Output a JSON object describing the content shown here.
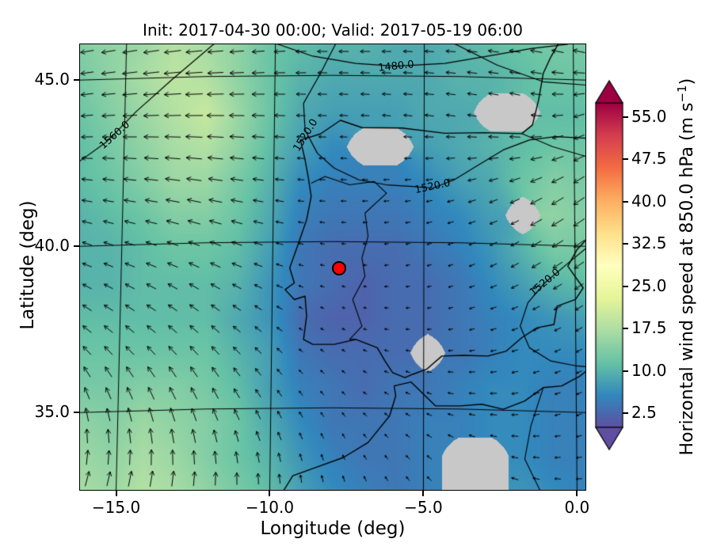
{
  "figure": {
    "title": "Init: 2017-04-30 00:00; Valid: 2017-05-19 06:00",
    "xlabel": "Longitude (deg)",
    "ylabel": "Latitude (deg)",
    "xticks": [
      -15.0,
      -10.0,
      -5.0,
      0.0
    ],
    "xtick_labels": [
      "−15.0",
      "−10.0",
      "−5.0",
      "0.0"
    ],
    "yticks": [
      35.0,
      40.0,
      45.0
    ],
    "ytick_labels": [
      "35.0",
      "40.0",
      "45.0"
    ]
  },
  "chart_data": {
    "type": "heatmap",
    "title": "Init: 2017-04-30 00:00; Valid: 2017-05-19 06:00",
    "xlabel": "Longitude (deg)",
    "ylabel": "Latitude (deg)",
    "xlim": [
      -16.2,
      0.3
    ],
    "ylim": [
      32.65,
      46.1
    ],
    "grid_on": true,
    "colorbar": {
      "label_prefix": "Horizontal wind speed at 850.0 hPa (m s",
      "label_sup": "−1",
      "label_suffix": ")",
      "tick_values": [
        2.5,
        10.0,
        17.5,
        25.0,
        32.5,
        40.0,
        47.5,
        55.0
      ],
      "tick_labels": [
        "2.5",
        "10.0",
        "17.5",
        "25.0",
        "32.5",
        "40.0",
        "47.5",
        "55.0"
      ],
      "vmin": 0.0,
      "vmax": 57.5,
      "extend": "both",
      "colormap_stops": [
        [
          0.0,
          "#5e4fa2"
        ],
        [
          5.75,
          "#3288bd"
        ],
        [
          11.5,
          "#66c2a5"
        ],
        [
          17.25,
          "#abdda4"
        ],
        [
          23.0,
          "#e6f598"
        ],
        [
          28.75,
          "#ffffbf"
        ],
        [
          34.5,
          "#fee08b"
        ],
        [
          40.25,
          "#fdae61"
        ],
        [
          46.0,
          "#f46d43"
        ],
        [
          51.75,
          "#d53e4f"
        ],
        [
          57.5,
          "#9e0142"
        ]
      ],
      "masked_color": "#c8c8c8"
    },
    "wind_speed_grid": {
      "lon": [
        -16.2,
        -15.17,
        -14.14,
        -13.11,
        -12.08,
        -11.04,
        -10.01,
        -8.98,
        -7.95,
        -6.92,
        -5.88,
        -4.85,
        -3.82,
        -2.79,
        -1.76,
        -0.73,
        0.3
      ],
      "lat": [
        46.1,
        45.07,
        44.03,
        43.0,
        41.96,
        40.93,
        39.89,
        38.86,
        37.82,
        36.79,
        35.75,
        34.72,
        33.68,
        32.65
      ],
      "values": [
        [
          14,
          15,
          16,
          18,
          17,
          15,
          12,
          11,
          10,
          10,
          9,
          9,
          10,
          11,
          12,
          13,
          13
        ],
        [
          13,
          15,
          17,
          19,
          18,
          15,
          12,
          10,
          9,
          9,
          9,
          9,
          10,
          10,
          11,
          12,
          12
        ],
        [
          12,
          14,
          16,
          18,
          20,
          16,
          12,
          9,
          8,
          8,
          8,
          9,
          9,
          null,
          null,
          11,
          11
        ],
        [
          11,
          13,
          15,
          17,
          18,
          15,
          11,
          8,
          6,
          null,
          null,
          8,
          9,
          10,
          11,
          12,
          12
        ],
        [
          11,
          12,
          14,
          16,
          16,
          13,
          10,
          6,
          5,
          5,
          5,
          6,
          8,
          9,
          12,
          14,
          13
        ],
        [
          10,
          11,
          12,
          14,
          14,
          12,
          9,
          5,
          4,
          4,
          4,
          5,
          6,
          8,
          null,
          15,
          14
        ],
        [
          10,
          10,
          11,
          12,
          12,
          11,
          8,
          4,
          3,
          3,
          3,
          4,
          5,
          7,
          10,
          13,
          13
        ],
        [
          10,
          10,
          11,
          11,
          11,
          10,
          7,
          4,
          3,
          2,
          3,
          3,
          4,
          6,
          8,
          10,
          11
        ],
        [
          11,
          11,
          11,
          11,
          11,
          9,
          7,
          3,
          2,
          2,
          3,
          3,
          4,
          5,
          6,
          7,
          8
        ],
        [
          12,
          12,
          12,
          12,
          12,
          10,
          8,
          4,
          3,
          3,
          3,
          null,
          4,
          5,
          6,
          6,
          6
        ],
        [
          13,
          13,
          14,
          14,
          13,
          11,
          8,
          5,
          4,
          3,
          4,
          4,
          5,
          6,
          6,
          5,
          5
        ],
        [
          15,
          14,
          16,
          15,
          14,
          12,
          9,
          6,
          4,
          4,
          4,
          5,
          5,
          6,
          6,
          5,
          5
        ],
        [
          16,
          15,
          17,
          16,
          14,
          12,
          10,
          7,
          5,
          4,
          4,
          5,
          null,
          null,
          6,
          5,
          5
        ],
        [
          17,
          16,
          18,
          17,
          15,
          13,
          11,
          8,
          6,
          5,
          4,
          5,
          null,
          null,
          7,
          6,
          5
        ]
      ]
    },
    "wind_direction_grid": {
      "lon": [
        -16.2,
        -14.14,
        -12.08,
        -10.01,
        -7.95,
        -5.89,
        -3.82,
        -1.76,
        0.3
      ],
      "lat": [
        46.1,
        43.86,
        41.62,
        39.37,
        37.13,
        34.89,
        32.65
      ],
      "angles_deg": [
        [
          190,
          190,
          185,
          185,
          180,
          180,
          175,
          170,
          165
        ],
        [
          185,
          182,
          180,
          178,
          178,
          175,
          172,
          168,
          200
        ],
        [
          172,
          172,
          170,
          172,
          178,
          185,
          195,
          205,
          215
        ],
        [
          158,
          158,
          155,
          160,
          170,
          190,
          200,
          210,
          215
        ],
        [
          138,
          138,
          135,
          140,
          152,
          172,
          190,
          200,
          210
        ],
        [
          100,
          105,
          110,
          118,
          125,
          145,
          165,
          185,
          200
        ],
        [
          70,
          75,
          82,
          90,
          100,
          122,
          142,
          162,
          182
        ]
      ]
    },
    "contours": [
      {
        "points": [
          [
            -9.8,
            46.1
          ],
          [
            -8.6,
            45.72
          ],
          [
            -7.2,
            45.5
          ],
          [
            -5.9,
            45.42
          ],
          [
            -4.3,
            45.5
          ],
          [
            -2.9,
            45.72
          ],
          [
            -1.5,
            45.95
          ],
          [
            -0.3,
            46.08
          ]
        ],
        "labels": [
          {
            "text": "1480.0",
            "pos": [
              -5.9,
              45.42
            ],
            "angle_deg": -6
          }
        ]
      },
      {
        "points": [
          [
            -4.0,
            46.1
          ],
          [
            -2.6,
            45.45
          ],
          [
            -1.1,
            44.95
          ],
          [
            0.3,
            44.85
          ]
        ],
        "labels": []
      },
      {
        "points": [
          [
            -11.8,
            46.1
          ],
          [
            -13.2,
            45.0
          ],
          [
            -14.35,
            44.05
          ],
          [
            -15.3,
            43.15
          ],
          [
            -16.2,
            42.55
          ]
        ],
        "labels": [
          {
            "text": "1560.0",
            "pos": [
              -15.05,
              43.35
            ],
            "angle_deg": -42
          }
        ]
      },
      {
        "points": [
          [
            -7.85,
            46.1
          ],
          [
            -8.35,
            45.2
          ],
          [
            -8.9,
            44.3
          ],
          [
            -8.85,
            43.5
          ],
          [
            -8.45,
            42.8
          ],
          [
            -7.9,
            42.35
          ],
          [
            -7.1,
            42.0
          ],
          [
            -6.2,
            41.85
          ],
          [
            -5.35,
            41.8
          ],
          [
            -4.7,
            41.75
          ],
          [
            -4.0,
            42.0
          ],
          [
            -3.2,
            42.45
          ],
          [
            -2.4,
            42.9
          ],
          [
            -1.55,
            43.2
          ],
          [
            -0.7,
            43.3
          ],
          [
            0.3,
            43.25
          ]
        ],
        "labels": [
          {
            "text": "1520.0",
            "pos": [
              -8.82,
              43.35
            ],
            "angle_deg": -58
          },
          {
            "text": "1520.0",
            "pos": [
              -4.7,
              41.78
            ],
            "angle_deg": -12
          }
        ]
      },
      {
        "points": [
          [
            0.3,
            39.95
          ],
          [
            -0.35,
            39.45
          ],
          [
            -1.05,
            38.9
          ],
          [
            -1.6,
            38.3
          ],
          [
            -1.85,
            37.6
          ],
          [
            -1.55,
            36.95
          ],
          [
            -0.85,
            36.55
          ],
          [
            0.0,
            36.4
          ],
          [
            0.3,
            36.38
          ]
        ],
        "labels": [
          {
            "text": "1520.0",
            "pos": [
              -1.05,
              38.9
            ],
            "angle_deg": -40
          }
        ]
      }
    ],
    "coastlines": [
      [
        [
          -1.8,
          43.39
        ],
        [
          -3.0,
          43.42
        ],
        [
          -4.3,
          43.4
        ],
        [
          -5.7,
          43.56
        ],
        [
          -7.0,
          43.57
        ],
        [
          -7.7,
          43.79
        ],
        [
          -8.35,
          43.38
        ],
        [
          -9.0,
          43.2
        ],
        [
          -8.85,
          42.6
        ],
        [
          -8.75,
          42.1
        ],
        [
          -8.65,
          41.5
        ],
        [
          -8.8,
          40.8
        ],
        [
          -9.1,
          40.0
        ],
        [
          -9.35,
          39.35
        ],
        [
          -9.2,
          38.9
        ],
        [
          -9.5,
          38.7
        ],
        [
          -9.2,
          38.4
        ],
        [
          -8.85,
          38.5
        ],
        [
          -8.8,
          37.9
        ],
        [
          -8.9,
          37.2
        ],
        [
          -8.6,
          37.05
        ],
        [
          -7.9,
          37.05
        ],
        [
          -7.2,
          37.2
        ],
        [
          -6.5,
          36.95
        ],
        [
          -6.25,
          36.55
        ],
        [
          -6.0,
          36.2
        ],
        [
          -5.6,
          36.05
        ],
        [
          -5.35,
          36.15
        ],
        [
          -4.9,
          36.3
        ],
        [
          -4.4,
          36.7
        ],
        [
          -3.7,
          36.72
        ],
        [
          -2.9,
          36.7
        ],
        [
          -2.3,
          36.85
        ],
        [
          -1.8,
          37.25
        ],
        [
          -1.3,
          37.55
        ],
        [
          -0.75,
          37.65
        ],
        [
          -0.65,
          38.2
        ],
        [
          -0.05,
          38.4
        ],
        [
          0.2,
          38.75
        ],
        [
          -0.3,
          39.4
        ],
        [
          0.0,
          39.9
        ],
        [
          0.3,
          40.2
        ]
      ],
      [
        [
          -1.8,
          43.39
        ],
        [
          -1.45,
          43.65
        ],
        [
          -1.25,
          44.4
        ],
        [
          -1.1,
          45.2
        ],
        [
          -0.85,
          45.7
        ],
        [
          -0.6,
          46.1
        ]
      ],
      [
        [
          -9.55,
          32.65
        ],
        [
          -9.25,
          33.1
        ],
        [
          -8.5,
          33.35
        ],
        [
          -7.6,
          33.65
        ],
        [
          -6.8,
          34.1
        ],
        [
          -6.1,
          34.9
        ],
        [
          -5.9,
          35.5
        ],
        [
          -5.95,
          35.8
        ],
        [
          -5.4,
          35.92
        ],
        [
          -4.6,
          35.2
        ],
        [
          -3.8,
          35.2
        ],
        [
          -3.1,
          35.25
        ],
        [
          -2.4,
          35.1
        ],
        [
          -1.7,
          35.35
        ],
        [
          -1.1,
          35.75
        ],
        [
          -0.5,
          35.8
        ],
        [
          0.1,
          36.1
        ],
        [
          0.3,
          36.25
        ]
      ]
    ],
    "borders": [
      [
        [
          -8.65,
          41.9
        ],
        [
          -8.2,
          42.1
        ],
        [
          -7.4,
          41.85
        ],
        [
          -6.6,
          41.95
        ],
        [
          -6.2,
          41.6
        ],
        [
          -6.9,
          41.0
        ],
        [
          -6.8,
          40.3
        ],
        [
          -7.0,
          39.65
        ],
        [
          -6.9,
          39.1
        ],
        [
          -7.3,
          38.4
        ],
        [
          -7.0,
          37.6
        ],
        [
          -7.4,
          37.2
        ],
        [
          -7.2,
          37.2
        ]
      ],
      [
        [
          -1.8,
          43.39
        ],
        [
          -0.8,
          43.0
        ],
        [
          0.3,
          42.7
        ]
      ],
      [
        [
          -1.1,
          35.75
        ],
        [
          -1.5,
          34.6
        ],
        [
          -1.7,
          33.6
        ],
        [
          -1.2,
          32.65
        ]
      ]
    ],
    "marker": {
      "lon": -7.75,
      "lat": 39.35,
      "color": "#ff0000",
      "edge_color": "#000000"
    }
  }
}
